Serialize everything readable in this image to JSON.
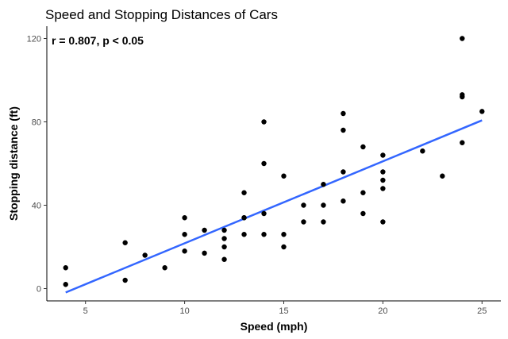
{
  "chart_data": {
    "type": "scatter",
    "title": "Speed and Stopping Distances of Cars",
    "annotation": "r = 0.807, p < 0.05",
    "xlabel": "Speed (mph)",
    "ylabel": "Stopping distance (ft)",
    "xlim": [
      3.05,
      25.95
    ],
    "ylim": [
      -5.9,
      125.9
    ],
    "x_ticks": [
      5,
      10,
      15,
      20,
      25
    ],
    "y_ticks": [
      0,
      40,
      80,
      120
    ],
    "x_tick_labels": [
      "5",
      "10",
      "15",
      "20",
      "25"
    ],
    "y_tick_labels": [
      "0",
      "40",
      "80",
      "120"
    ],
    "grid": false,
    "point_color": "#000000",
    "trend_color": "#3366ff",
    "points": [
      {
        "x": 4,
        "y": 2
      },
      {
        "x": 4,
        "y": 10
      },
      {
        "x": 7,
        "y": 4
      },
      {
        "x": 7,
        "y": 22
      },
      {
        "x": 8,
        "y": 16
      },
      {
        "x": 9,
        "y": 10
      },
      {
        "x": 10,
        "y": 18
      },
      {
        "x": 10,
        "y": 26
      },
      {
        "x": 10,
        "y": 34
      },
      {
        "x": 11,
        "y": 17
      },
      {
        "x": 11,
        "y": 28
      },
      {
        "x": 12,
        "y": 14
      },
      {
        "x": 12,
        "y": 20
      },
      {
        "x": 12,
        "y": 24
      },
      {
        "x": 12,
        "y": 28
      },
      {
        "x": 13,
        "y": 26
      },
      {
        "x": 13,
        "y": 34
      },
      {
        "x": 13,
        "y": 34
      },
      {
        "x": 13,
        "y": 46
      },
      {
        "x": 14,
        "y": 26
      },
      {
        "x": 14,
        "y": 36
      },
      {
        "x": 14,
        "y": 60
      },
      {
        "x": 14,
        "y": 80
      },
      {
        "x": 15,
        "y": 20
      },
      {
        "x": 15,
        "y": 26
      },
      {
        "x": 15,
        "y": 54
      },
      {
        "x": 16,
        "y": 32
      },
      {
        "x": 16,
        "y": 40
      },
      {
        "x": 17,
        "y": 32
      },
      {
        "x": 17,
        "y": 40
      },
      {
        "x": 17,
        "y": 50
      },
      {
        "x": 18,
        "y": 42
      },
      {
        "x": 18,
        "y": 56
      },
      {
        "x": 18,
        "y": 76
      },
      {
        "x": 18,
        "y": 84
      },
      {
        "x": 19,
        "y": 36
      },
      {
        "x": 19,
        "y": 46
      },
      {
        "x": 19,
        "y": 68
      },
      {
        "x": 20,
        "y": 32
      },
      {
        "x": 20,
        "y": 48
      },
      {
        "x": 20,
        "y": 52
      },
      {
        "x": 20,
        "y": 56
      },
      {
        "x": 20,
        "y": 64
      },
      {
        "x": 22,
        "y": 66
      },
      {
        "x": 23,
        "y": 54
      },
      {
        "x": 24,
        "y": 70
      },
      {
        "x": 24,
        "y": 92
      },
      {
        "x": 24,
        "y": 93
      },
      {
        "x": 24,
        "y": 120
      },
      {
        "x": 25,
        "y": 85
      }
    ],
    "trend_line": {
      "x": [
        4,
        25
      ],
      "y": [
        -1.85,
        80.73
      ]
    }
  }
}
